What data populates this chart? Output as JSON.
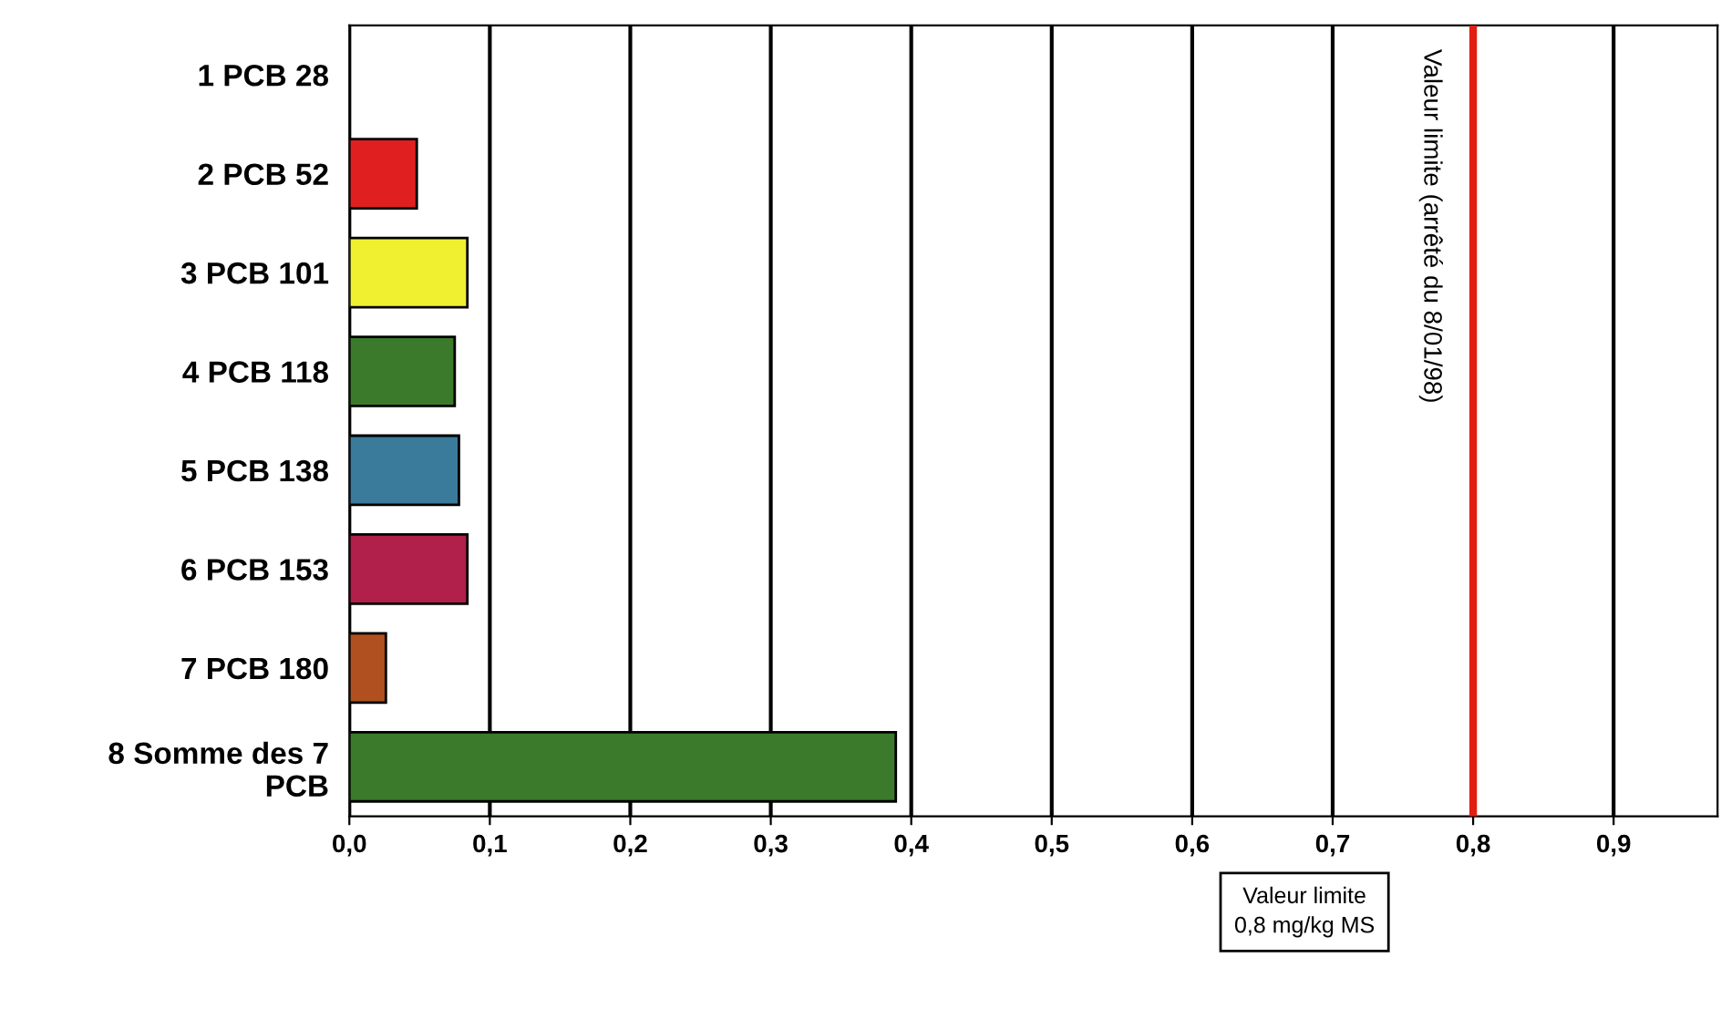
{
  "chart_data": {
    "type": "bar",
    "orientation": "horizontal",
    "categories": [
      "1 PCB 28",
      "2 PCB 52",
      "3 PCB 101",
      "4 PCB 118",
      "5 PCB 138",
      "6 PCB 153",
      "7 PCB 180",
      "8 Somme des 7\nPCB"
    ],
    "values": [
      null,
      0.048,
      0.084,
      0.075,
      0.078,
      0.084,
      0.026,
      0.389
    ],
    "colors": [
      null,
      "#e02020",
      "#f0f030",
      "#3a7a2a",
      "#3a7a9a",
      "#b0204a",
      "#b05020",
      "#3a7a2a"
    ],
    "xlim": [
      0,
      0.974
    ],
    "xticks": [
      {
        "value": 0,
        "label": "0,0"
      },
      {
        "value": 0.1,
        "label": "0,1"
      },
      {
        "value": 0.2,
        "label": "0,2"
      },
      {
        "value": 0.3,
        "label": "0,3"
      },
      {
        "value": 0.4,
        "label": "0,4"
      },
      {
        "value": 0.5,
        "label": "0,5"
      },
      {
        "value": 0.6,
        "label": "0,6"
      },
      {
        "value": 0.7,
        "label": "0,7"
      },
      {
        "value": 0.8,
        "label": "0,8"
      },
      {
        "value": 0.9,
        "label": "0,9"
      }
    ],
    "grid": "x",
    "ref_lines": [
      {
        "axis": "x",
        "value": 0.8,
        "label": "Valeur limite (arrêté du 8/01/98)",
        "color": "#e02010"
      }
    ],
    "annotations": [
      "Valeur limite\n0,8 mg/kg MS"
    ]
  }
}
